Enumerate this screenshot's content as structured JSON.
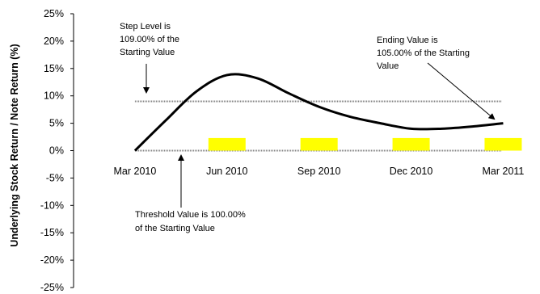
{
  "chart_data": {
    "type": "line",
    "ylabel": "Underlying Stock Return / Note Return (%)",
    "y_ticks": [
      "25%",
      "20%",
      "15%",
      "10%",
      "5%",
      "0%",
      "-5%",
      "-10%",
      "-15%",
      "-20%",
      "-25%"
    ],
    "ylim": [
      -25,
      25
    ],
    "x_tick_labels": [
      "Mar 2010",
      "Jun 2010",
      "Sep 2010",
      "Dec 2010",
      "Mar 2011"
    ],
    "x_months": [
      0,
      3,
      6,
      9,
      12
    ],
    "xlim_months": [
      -2,
      13.2
    ],
    "series": [
      {
        "style": "line",
        "color": "#000000",
        "x_months": [
          0,
          1,
          2,
          3,
          4,
          5,
          6,
          7,
          8,
          9,
          10,
          11,
          12
        ],
        "values": [
          0,
          5.5,
          10.8,
          13.8,
          13.2,
          10.5,
          8.0,
          6.2,
          5.0,
          4.0,
          4.0,
          4.4,
          5.0
        ]
      },
      {
        "style": "bar",
        "color": "#ffff00",
        "x_months": [
          3,
          6,
          9,
          12
        ],
        "values": [
          2.3,
          2.3,
          2.3,
          2.3
        ]
      }
    ],
    "reference_lines": [
      {
        "value": 9,
        "style": "dotted-gray"
      },
      {
        "value": 0,
        "style": "dotted-gray"
      }
    ],
    "annotations": [
      {
        "lines": [
          "Step Level is",
          "109.00% of the",
          "Starting Value"
        ]
      },
      {
        "lines": [
          "Ending Value is",
          "105.00% of the Starting",
          "Value"
        ]
      },
      {
        "lines": [
          "Threshold Value is 100.00%",
          "of the Starting Value"
        ]
      }
    ],
    "grid": false
  }
}
